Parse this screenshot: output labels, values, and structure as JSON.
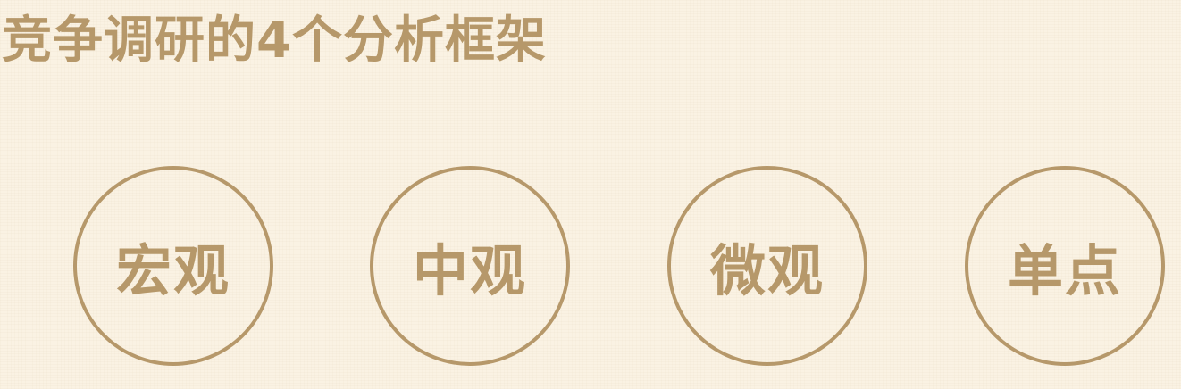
{
  "title": "竞争调研的4个分析框架",
  "frameworks": [
    {
      "label": "宏观"
    },
    {
      "label": "中观"
    },
    {
      "label": "微观"
    },
    {
      "label": "单点"
    }
  ],
  "colors": {
    "accent": "#b6986a",
    "background": "#faf2e3"
  }
}
